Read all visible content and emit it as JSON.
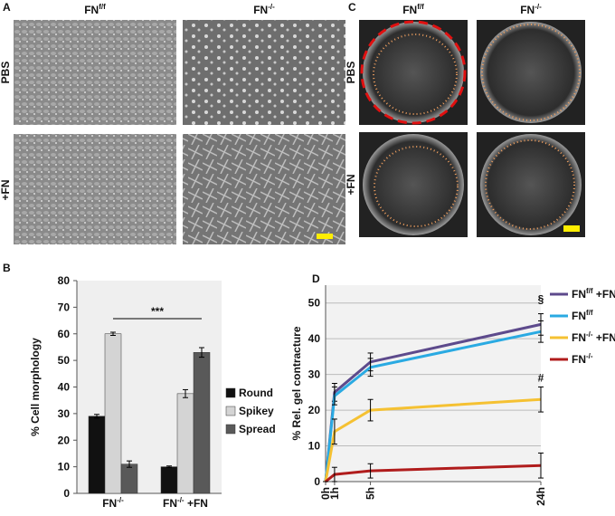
{
  "panels": [
    "A",
    "B",
    "C",
    "D"
  ],
  "col_labels": [
    "FNf/f",
    "FN-/-"
  ],
  "row_labels": [
    "PBS",
    "+FN"
  ],
  "chart_data": [
    {
      "type": "bar",
      "ylabel": "% Cell morphology",
      "categories": [
        "FN-/-",
        "FN-/- +FN"
      ],
      "series": [
        {
          "name": "Round",
          "color": "#111111",
          "values": [
            29,
            10
          ],
          "errors": [
            0.7,
            0.3
          ]
        },
        {
          "name": "Spikey",
          "color": "#d4d4d4",
          "values": [
            60,
            37.5
          ],
          "errors": [
            0.6,
            1.5
          ]
        },
        {
          "name": "Spread",
          "color": "#595959",
          "values": [
            11,
            53
          ],
          "errors": [
            1.2,
            1.8
          ]
        }
      ],
      "ylim": [
        0,
        80
      ],
      "yticks": [
        0,
        10,
        20,
        30,
        40,
        50,
        60,
        70,
        80
      ],
      "annotation": "***"
    },
    {
      "type": "line",
      "ylabel": "% Rel. gel contracture",
      "x": [
        0,
        1,
        5,
        24
      ],
      "xticks": [
        {
          "value": 0,
          "label": "0h"
        },
        {
          "value": 1,
          "label": "1h"
        },
        {
          "value": 5,
          "label": "5h"
        },
        {
          "value": 24,
          "label": "24h"
        }
      ],
      "xlim": [
        0,
        24
      ],
      "ylim": [
        0,
        55
      ],
      "yticks": [
        0,
        10,
        20,
        30,
        40,
        50
      ],
      "grid": true,
      "series": [
        {
          "name": "FNf/f +FN",
          "color": "#5d4a8c",
          "values": [
            0,
            25,
            33.5,
            44
          ],
          "errors": [
            0,
            2.5,
            2.5,
            3
          ]
        },
        {
          "name": "FNf/f",
          "color": "#2aaae2",
          "values": [
            0,
            24,
            32,
            42
          ],
          "errors": [
            0,
            2.5,
            2.5,
            3
          ]
        },
        {
          "name": "FN-/- +FN",
          "color": "#f5c132",
          "values": [
            0,
            14,
            20,
            23
          ],
          "errors": [
            0,
            3.5,
            3,
            3.5
          ]
        },
        {
          "name": "FN-/-",
          "color": "#b01c1c",
          "values": [
            0,
            2,
            3,
            4.5
          ],
          "errors": [
            0,
            2,
            2,
            3.5
          ]
        }
      ],
      "annotations": [
        "§",
        "#"
      ]
    }
  ]
}
